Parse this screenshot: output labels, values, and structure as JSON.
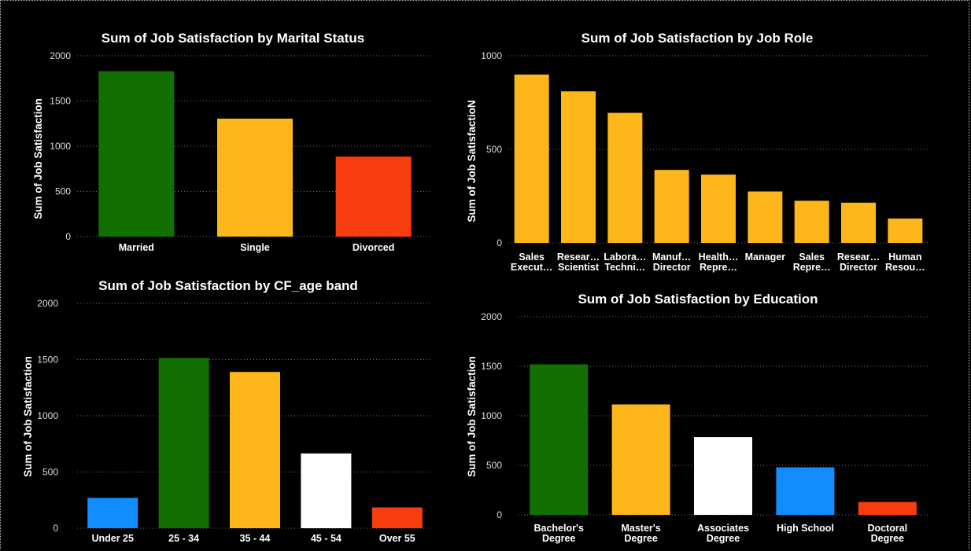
{
  "chart_data": [
    {
      "id": "marital",
      "type": "bar",
      "title": "Sum of Job Satisfaction by Marital Status",
      "xlabel": "",
      "ylabel": "Sum of Job Satisfaction",
      "categories": [
        "Married",
        "Single",
        "Divorced"
      ],
      "values": [
        1830,
        1305,
        885
      ],
      "colors": [
        "#117000",
        "#FDB71A",
        "#F83D0E"
      ],
      "ylim": [
        0,
        2000
      ],
      "yticks": [
        0,
        500,
        1000,
        1500,
        2000
      ],
      "grid": true
    },
    {
      "id": "jobrole",
      "type": "bar",
      "title": "Sum of Job Satisfaction by Job Role",
      "xlabel": "",
      "ylabel": "Sum of Job SatisfactioN",
      "categories": [
        [
          "Sales",
          "Execut…"
        ],
        [
          "Resear…",
          "Scientist"
        ],
        [
          "Labora…",
          "Techni…"
        ],
        [
          "Manuf…",
          "Director"
        ],
        [
          "Health…",
          "Repre…"
        ],
        [
          "Manager"
        ],
        [
          "Sales",
          "Repre…"
        ],
        [
          "Resear…",
          "Director"
        ],
        [
          "Human",
          "Resou…"
        ]
      ],
      "values": [
        900,
        810,
        695,
        390,
        365,
        275,
        225,
        215,
        130
      ],
      "colors": [
        "#FDB71A",
        "#FDB71A",
        "#FDB71A",
        "#FDB71A",
        "#FDB71A",
        "#FDB71A",
        "#FDB71A",
        "#FDB71A",
        "#FDB71A"
      ],
      "ylim": [
        0,
        1000
      ],
      "yticks": [
        0,
        500,
        1000
      ],
      "grid": true
    },
    {
      "id": "ageband",
      "type": "bar",
      "title": "Sum of Job Satisfaction by CF_age band",
      "xlabel": "",
      "ylabel": "Sum of Job Satisfaction",
      "categories": [
        "Under 25",
        "25 - 34",
        "35 - 44",
        "45 - 54",
        "Over 55"
      ],
      "values": [
        270,
        1515,
        1390,
        665,
        185
      ],
      "colors": [
        "#118DFF",
        "#117000",
        "#FDB71A",
        "#FFFFFF",
        "#F83D0E"
      ],
      "ylim": [
        0,
        2000
      ],
      "yticks": [
        0,
        500,
        1000,
        1500,
        2000
      ],
      "grid": true
    },
    {
      "id": "education",
      "type": "bar",
      "title": "Sum of Job Satisfaction by Education",
      "xlabel": "",
      "ylabel": "Sum of Job Satisfaction",
      "categories": [
        [
          "Bachelor's",
          "Degree"
        ],
        [
          "Master's",
          "Degree"
        ],
        [
          "Associates",
          "Degree"
        ],
        [
          "High School"
        ],
        [
          "Doctoral",
          "Degree"
        ]
      ],
      "values": [
        1520,
        1115,
        785,
        480,
        130
      ],
      "colors": [
        "#117000",
        "#FDB71A",
        "#FFFFFF",
        "#118DFF",
        "#F83D0E"
      ],
      "ylim": [
        0,
        2000
      ],
      "yticks": [
        0,
        500,
        1000,
        1500,
        2000
      ],
      "grid": true
    }
  ]
}
